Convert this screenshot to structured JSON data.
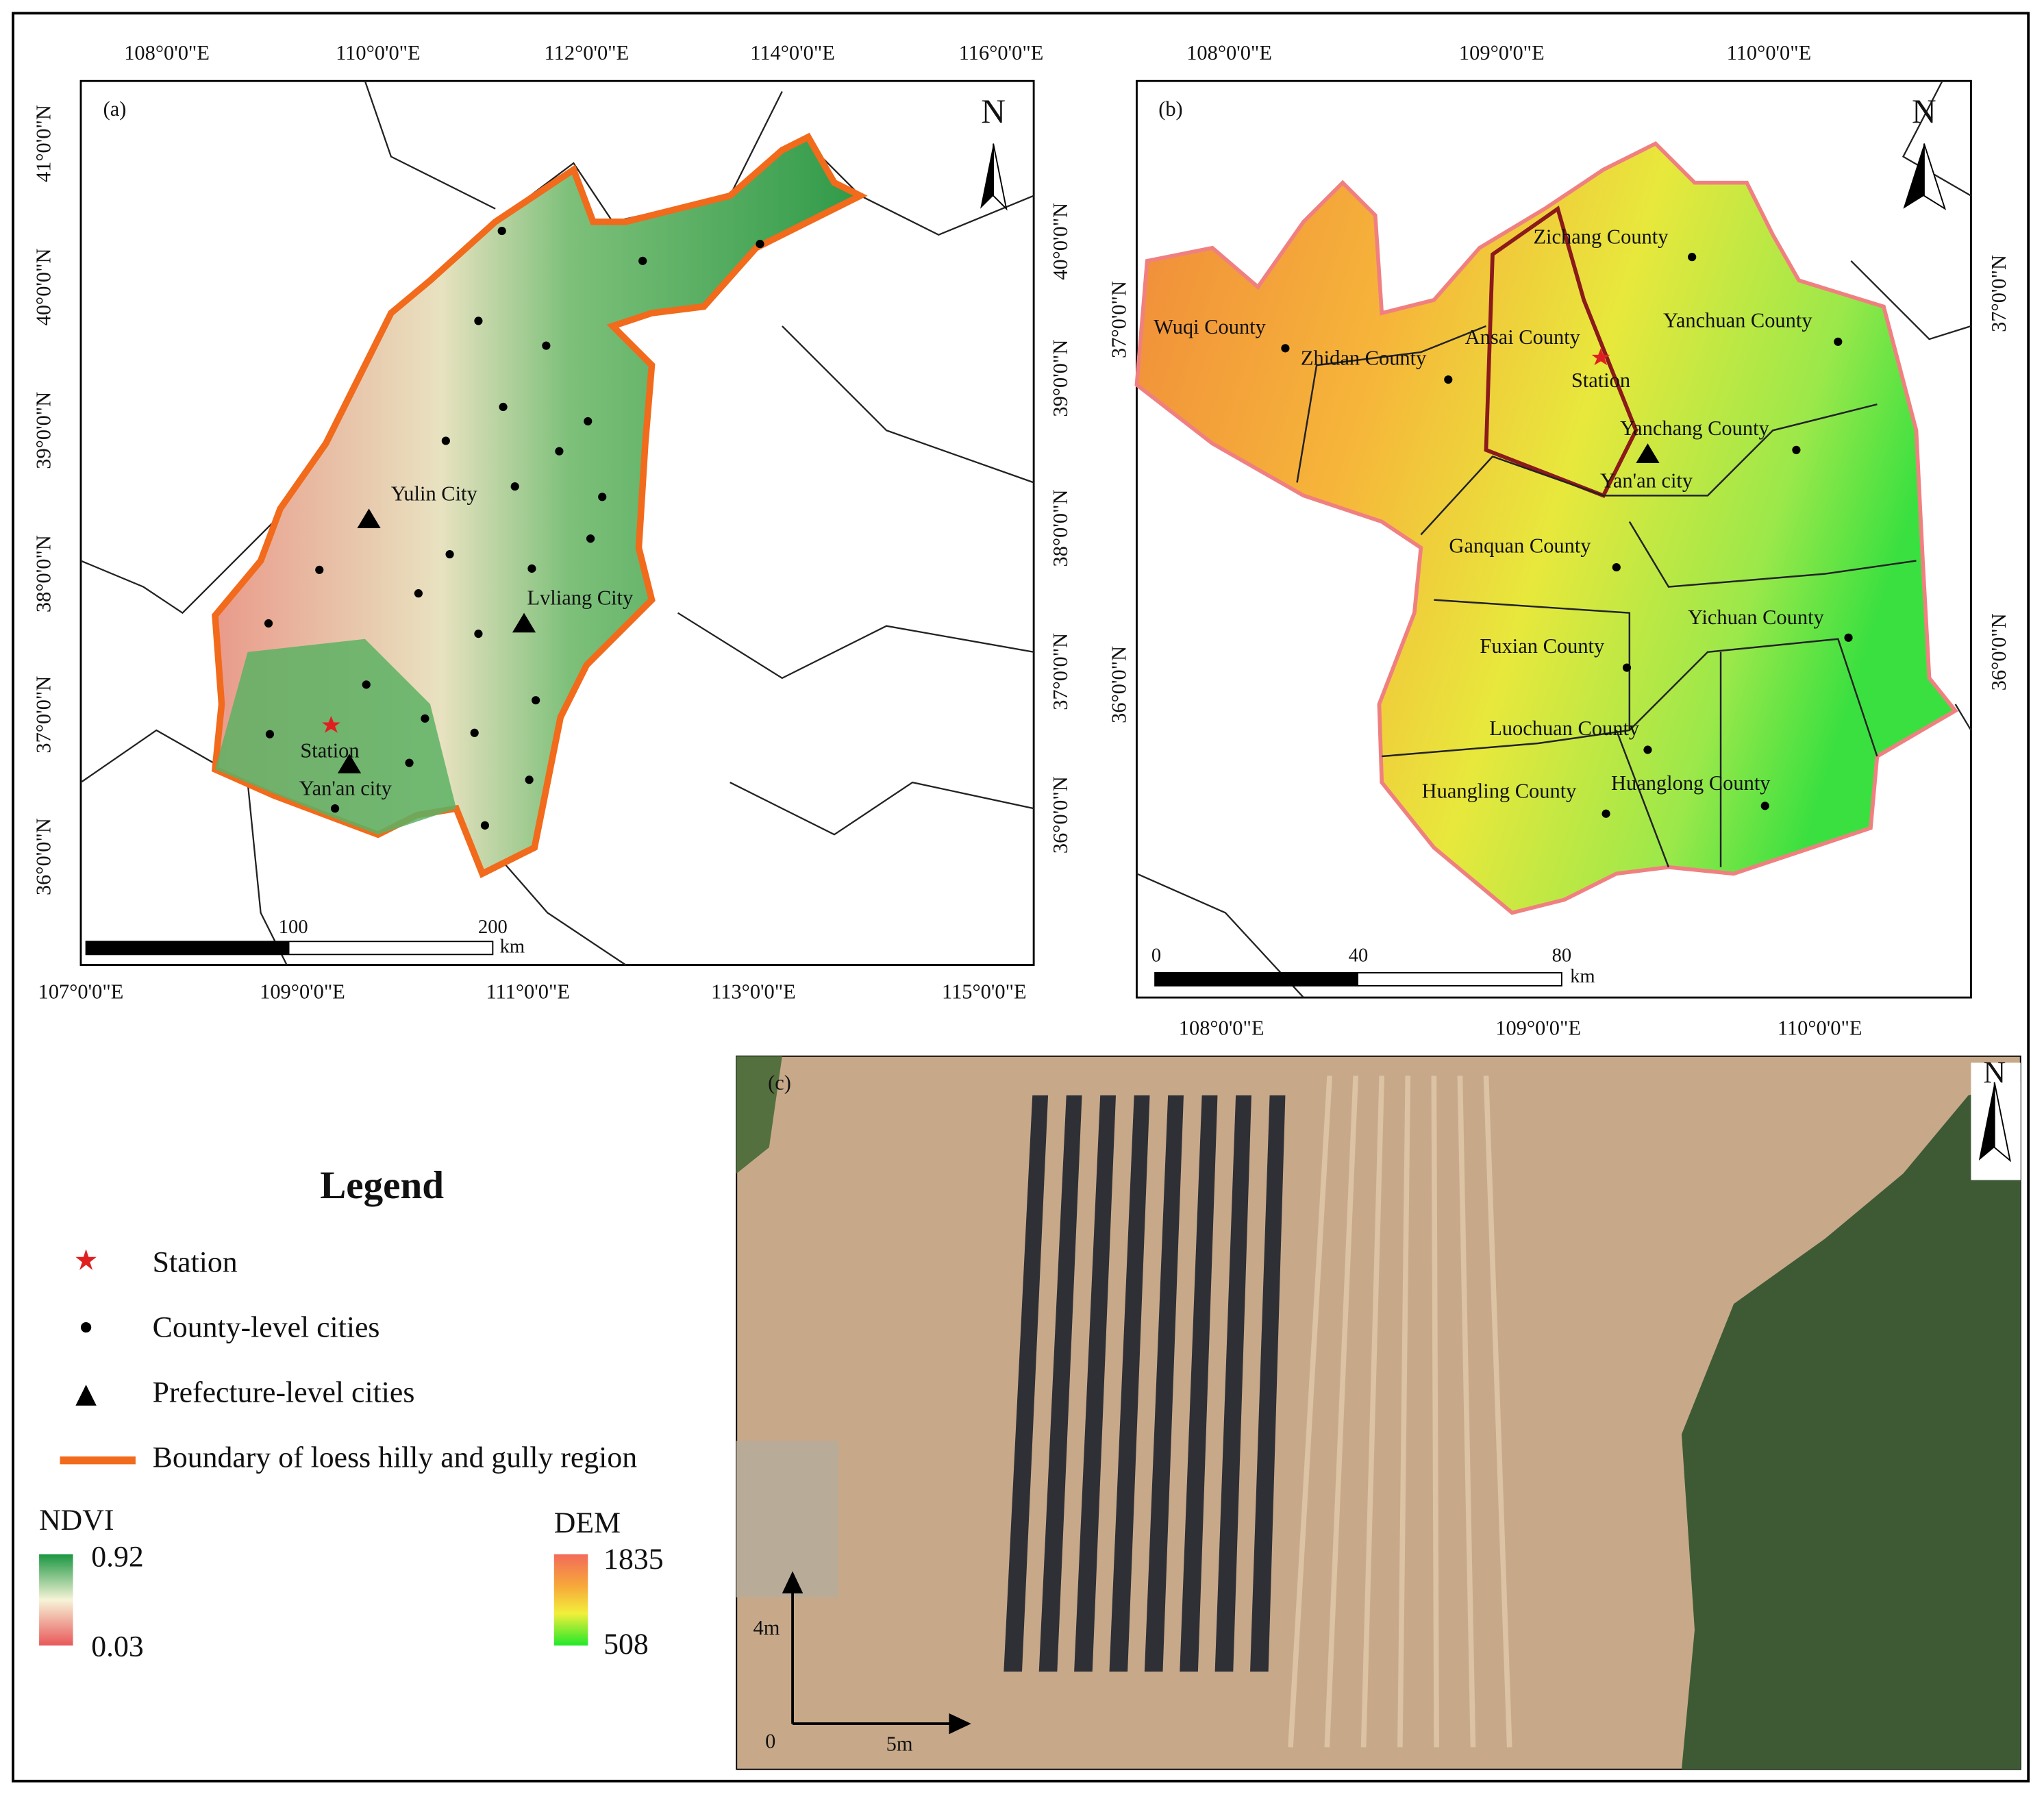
{
  "panel_a": {
    "label": "(a)",
    "north": "N",
    "top_ticks": [
      "108°0'0\"E",
      "110°0'0\"E",
      "112°0'0\"E",
      "114°0'0\"E",
      "116°0'0\"E"
    ],
    "bottom_ticks": [
      "107°0'0\"E",
      "109°0'0\"E",
      "111°0'0\"E",
      "113°0'0\"E",
      "115°0'0\"E"
    ],
    "left_ticks": [
      "41°0'0\"N",
      "40°0'0\"N",
      "39°0'0\"N",
      "38°0'0\"N",
      "37°0'0\"N",
      "36°0'0\"N"
    ],
    "right_ticks": [
      "40°0'0\"N",
      "39°0'0\"N",
      "38°0'0\"N",
      "37°0'0\"N",
      "36°0'0\"N"
    ],
    "places": [
      "Yulin City",
      "Lvliang City",
      "Station",
      "Yan'an city"
    ],
    "scale": [
      "100",
      "200",
      "km"
    ]
  },
  "panel_b": {
    "label": "(b)",
    "north": "N",
    "top_ticks": [
      "108°0'0\"E",
      "109°0'0\"E",
      "110°0'0\"E"
    ],
    "bottom_ticks": [
      "108°0'0\"E",
      "109°0'0\"E",
      "110°0'0\"E"
    ],
    "left_ticks": [
      "37°0'0\"N",
      "36°0'0\"N"
    ],
    "right_ticks": [
      "37°0'0\"N",
      "36°0'0\"N"
    ],
    "places": [
      "Zichang County",
      "Wuqi County",
      "Zhidan County",
      "Ansai County",
      "Yanchuan County",
      "Station",
      "Yanchang County",
      "Yan'an city",
      "Ganquan County",
      "Yichuan County",
      "Fuxian County",
      "Luochuan County",
      "Huangling County",
      "Huanglong County"
    ],
    "scale": [
      "0",
      "40",
      "80",
      "km"
    ]
  },
  "panel_c": {
    "label": "(c)",
    "north": "N",
    "y_scale": "4m",
    "origin": "0",
    "x_scale": "5m"
  },
  "legend": {
    "title": "Legend",
    "items": [
      "Station",
      "County-level cities",
      "Prefecture-level cities",
      "Boundary of loess hilly and gully region"
    ],
    "ndvi": {
      "title": "NDVI",
      "max": "0.92",
      "min": "0.03"
    },
    "dem": {
      "title": "DEM",
      "max": "1835",
      "min": "508"
    }
  }
}
